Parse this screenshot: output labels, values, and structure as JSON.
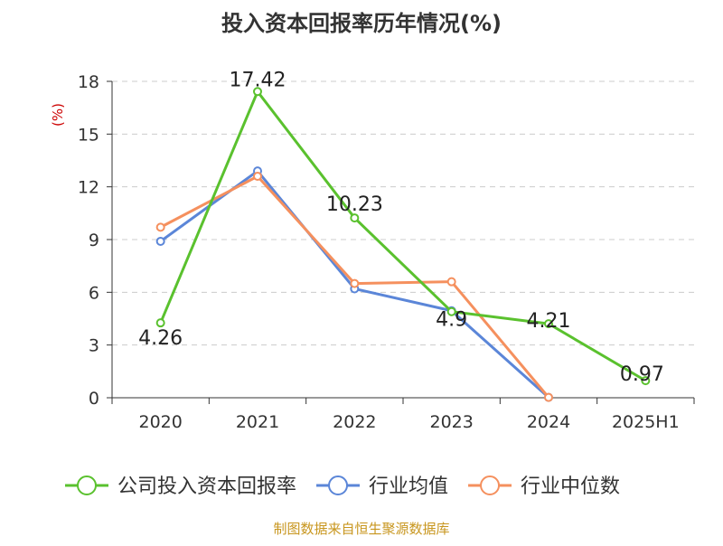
{
  "chart_data": {
    "type": "line",
    "title": "投入资本回报率历年情况(%)",
    "ylabel": "(%)",
    "xlabel": "",
    "categories": [
      "2020",
      "2021",
      "2022",
      "2023",
      "2024",
      "2025H1"
    ],
    "ylim": [
      0,
      18
    ],
    "yticks": [
      0,
      3,
      6,
      9,
      12,
      15,
      18
    ],
    "grid": true,
    "legend_position": "bottom",
    "series": [
      {
        "name": "公司投入资本回报率",
        "color": "#5ac12e",
        "values": [
          4.26,
          17.42,
          10.23,
          4.9,
          4.21,
          0.97
        ],
        "data_labels": [
          "4.26",
          "17.42",
          "10.23",
          "4.9",
          "4.21",
          "0.97"
        ]
      },
      {
        "name": "行业均值",
        "color": "#5b86d8",
        "values": [
          8.9,
          12.9,
          6.2,
          4.95,
          0.02,
          null
        ]
      },
      {
        "name": "行业中位数",
        "color": "#f5905e",
        "values": [
          9.7,
          12.6,
          6.5,
          6.6,
          0.02,
          null
        ]
      }
    ]
  },
  "footer": {
    "source": "制图数据来自恒生聚源数据库"
  },
  "colors": {
    "title": "#333333",
    "ylabel": "#cc0000",
    "axis": "#333333",
    "grid": "#cccccc",
    "footer": "#c8961e"
  }
}
